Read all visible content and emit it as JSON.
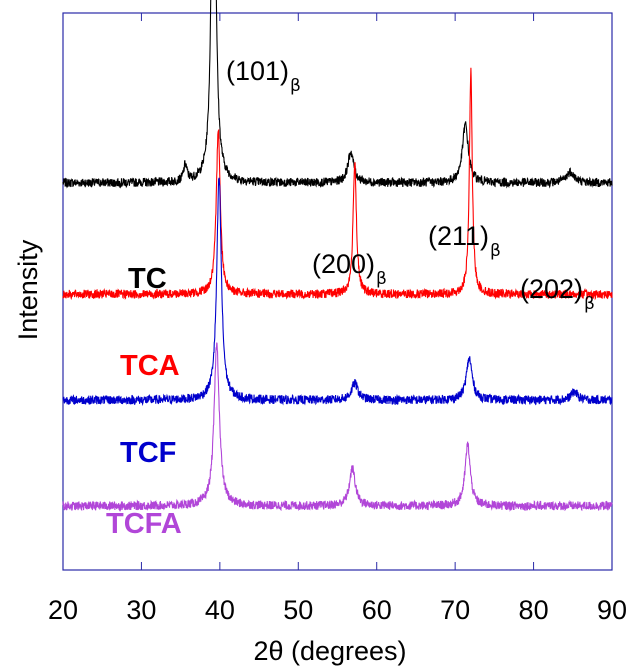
{
  "chart_data": {
    "type": "line",
    "xlabel": "2θ (degrees)",
    "ylabel": "Intensity",
    "xlim": [
      20,
      90
    ],
    "x_ticks": [
      "20",
      "30",
      "40",
      "50",
      "60",
      "70",
      "80",
      "90"
    ],
    "y_ticks_labeled": false,
    "grid": false,
    "legend": "none; series names placed as colored labels left of each trace",
    "annotations": [
      {
        "text": "(101)",
        "sub": "β",
        "x": 39.5
      },
      {
        "text": "(200)",
        "sub": "β",
        "x": 56.8
      },
      {
        "text": "(211)",
        "sub": "β",
        "x": 71.6
      },
      {
        "text": "(202)",
        "sub": "β",
        "x": 84.8
      }
    ],
    "series": [
      {
        "name": "TC",
        "color": "#000000",
        "baseline": 0.695,
        "peaks": [
          [
            35.6,
            0.03,
            0.25
          ],
          [
            39.2,
            0.8,
            0.3
          ],
          [
            56.7,
            0.055,
            0.45
          ],
          [
            71.3,
            0.105,
            0.45
          ],
          [
            84.7,
            0.02,
            0.6
          ]
        ]
      },
      {
        "name": "TCA",
        "color": "#ff0000",
        "baseline": 0.495,
        "peaks": [
          [
            39.8,
            0.3,
            0.3
          ],
          [
            57.2,
            0.24,
            0.25
          ],
          [
            72.0,
            0.4,
            0.22
          ]
        ]
      },
      {
        "name": "TCF",
        "color": "#0000cc",
        "baseline": 0.305,
        "peaks": [
          [
            39.9,
            0.4,
            0.35
          ],
          [
            57.2,
            0.03,
            0.5
          ],
          [
            71.8,
            0.075,
            0.45
          ],
          [
            85.2,
            0.015,
            0.5
          ]
        ]
      },
      {
        "name": "TCFA",
        "color": "#b146d8",
        "baseline": 0.115,
        "peaks": [
          [
            39.6,
            0.29,
            0.4
          ],
          [
            56.9,
            0.067,
            0.45
          ],
          [
            71.6,
            0.11,
            0.4
          ]
        ]
      }
    ]
  }
}
